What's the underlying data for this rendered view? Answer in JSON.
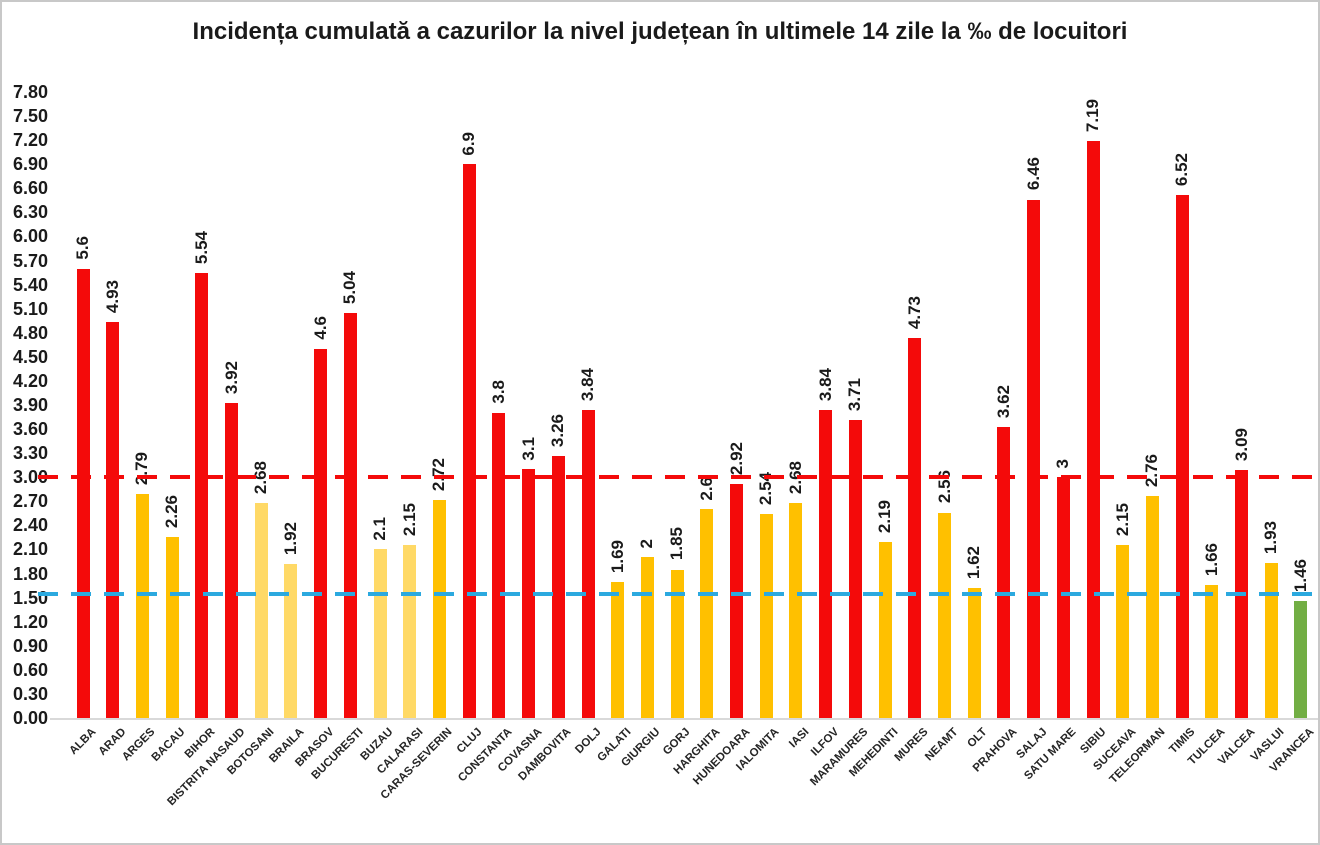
{
  "chart_data": {
    "type": "bar",
    "title": "Incidența cumulată a cazurilor la nivel județean în ultimele 14 zile la ‰ de locuitori",
    "categories": [
      "ALBA",
      "ARAD",
      "ARGES",
      "BACAU",
      "BIHOR",
      "BISTRITA NASAUD",
      "BOTOSANI",
      "BRAILA",
      "BRASOV",
      "BUCURESTI",
      "BUZAU",
      "CALARASI",
      "CARAS-SEVERIN",
      "CLUJ",
      "CONSTANTA",
      "COVASNA",
      "DAMBOVITA",
      "DOLJ",
      "GALATI",
      "GIURGIU",
      "GORJ",
      "HARGHITA",
      "HUNEDOARA",
      "IALOMITA",
      "IASI",
      "ILFOV",
      "MARAMURES",
      "MEHEDINTI",
      "MURES",
      "NEAMT",
      "OLT",
      "PRAHOVA",
      "SALAJ",
      "SATU MARE",
      "SIBIU",
      "SUCEAVA",
      "TELEORMAN",
      "TIMIS",
      "TULCEA",
      "VALCEA",
      "VASLUI",
      "VRANCEA"
    ],
    "values": [
      5.6,
      4.93,
      2.79,
      2.26,
      5.54,
      3.92,
      2.68,
      1.92,
      4.6,
      5.04,
      2.1,
      2.15,
      2.72,
      6.9,
      3.8,
      3.1,
      3.26,
      3.84,
      1.69,
      2,
      1.85,
      2.6,
      2.92,
      2.54,
      2.68,
      3.84,
      3.71,
      2.19,
      4.73,
      2.56,
      1.62,
      3.62,
      6.46,
      3,
      7.19,
      2.15,
      2.76,
      6.52,
      1.66,
      3.09,
      1.93,
      1.46
    ],
    "value_labels": [
      "5.6",
      "4.93",
      "2.79",
      "2.26",
      "5.54",
      "3.92",
      "2.68",
      "1.92",
      "4.6",
      "5.04",
      "2.1",
      "2.15",
      "2.72",
      "6.9",
      "3.8",
      "3.1",
      "3.26",
      "3.84",
      "1.69",
      "2",
      "1.85",
      "2.6",
      "2.92",
      "2.54",
      "2.68",
      "3.84",
      "3.71",
      "2.19",
      "4.73",
      "2.56",
      "1.62",
      "3.62",
      "6.46",
      "3",
      "7.19",
      "2.15",
      "2.76",
      "6.52",
      "1.66",
      "3.09",
      "1.93",
      "1.46"
    ],
    "bar_color_keys": [
      "red",
      "red",
      "gold",
      "gold",
      "red",
      "red",
      "light_yellow",
      "light_yellow",
      "red",
      "red",
      "light_yellow",
      "light_yellow",
      "gold",
      "red",
      "red",
      "red",
      "red",
      "red",
      "gold",
      "gold",
      "gold",
      "gold",
      "red",
      "gold",
      "gold",
      "red",
      "red",
      "gold",
      "red",
      "gold",
      "gold",
      "red",
      "red",
      "red",
      "red",
      "gold",
      "gold",
      "red",
      "gold",
      "red",
      "gold",
      "green"
    ],
    "palette": {
      "red": "#f40a0a",
      "gold": "#ffc000",
      "light_yellow": "#ffd966",
      "green": "#72ae44"
    },
    "ylim": [
      0,
      7.8
    ],
    "ytick_step": 0.3,
    "ytick_labels": [
      "0.00",
      "0.30",
      "0.60",
      "0.90",
      "1.20",
      "1.50",
      "1.80",
      "2.10",
      "2.40",
      "2.70",
      "3.00",
      "3.30",
      "3.60",
      "3.90",
      "4.20",
      "4.50",
      "4.80",
      "5.10",
      "5.40",
      "5.70",
      "6.00",
      "6.30",
      "6.60",
      "6.90",
      "7.20",
      "7.50",
      "7.80"
    ],
    "reference_lines": [
      {
        "name": "red-threshold",
        "value": 3.0,
        "color": "#f40a0a",
        "style": "dashed"
      },
      {
        "name": "blue-threshold",
        "value": 1.55,
        "color": "#2ba9df",
        "style": "dashed"
      }
    ],
    "xlabel": "",
    "ylabel": "",
    "grid": "off",
    "legend": "none",
    "value_label_rotation": 90,
    "xtick_label_rotation": 45,
    "axis_line_color": "#d9d9d9"
  }
}
